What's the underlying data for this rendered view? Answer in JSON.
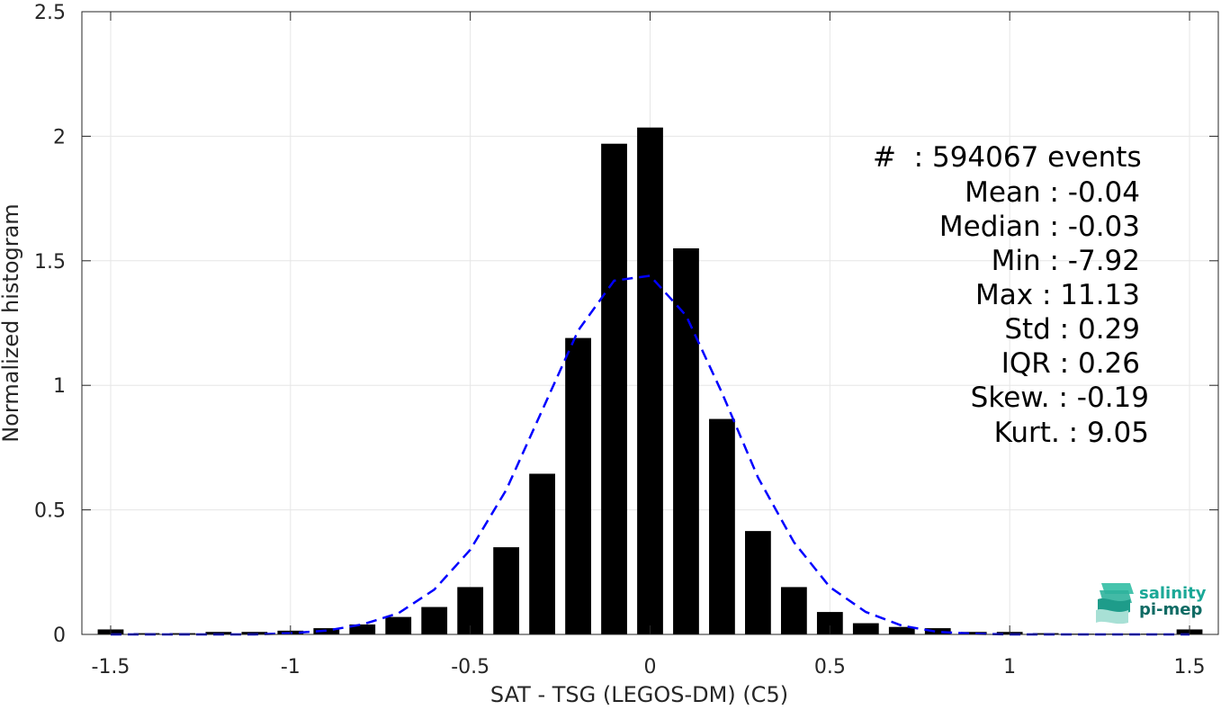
{
  "chart_data": {
    "type": "bar",
    "xlabel": "SAT - TSG (LEGOS-DM) (C5)",
    "ylabel": "Normalized histogram",
    "xlim": [
      -1.58,
      1.58
    ],
    "ylim": [
      0,
      2.5
    ],
    "x_ticks": [
      "-1.5",
      "-1",
      "-0.5",
      "0",
      "0.5",
      "1",
      "1.5"
    ],
    "y_ticks": [
      "0",
      "0.5",
      "1",
      "1.5",
      "2",
      "2.5"
    ],
    "grid": true,
    "bar_color": "#000000",
    "curve_color": "#0000ff",
    "x": [
      -1.5,
      -1.4,
      -1.3,
      -1.2,
      -1.1,
      -1.0,
      -0.9,
      -0.8,
      -0.7,
      -0.6,
      -0.5,
      -0.4,
      -0.3,
      -0.2,
      -0.1,
      0.0,
      0.1,
      0.2,
      0.3,
      0.4,
      0.5,
      0.6,
      0.7,
      0.8,
      0.9,
      1.0,
      1.1,
      1.2,
      1.3,
      1.4,
      1.5
    ],
    "series": [
      {
        "type": "bar",
        "values": [
          0.02,
          0.005,
          0.005,
          0.01,
          0.01,
          0.015,
          0.025,
          0.04,
          0.07,
          0.11,
          0.19,
          0.35,
          0.645,
          1.19,
          1.97,
          2.035,
          1.55,
          0.865,
          0.415,
          0.19,
          0.09,
          0.045,
          0.03,
          0.025,
          0.01,
          0.01,
          0.005,
          0.003,
          0.003,
          0.003,
          0.02
        ]
      },
      {
        "type": "line",
        "style": "dashed",
        "values": [
          0.0,
          0.0,
          0.0,
          0.0,
          0.0,
          0.005,
          0.015,
          0.04,
          0.085,
          0.18,
          0.34,
          0.58,
          0.9,
          1.22,
          1.42,
          1.44,
          1.28,
          0.97,
          0.63,
          0.37,
          0.19,
          0.09,
          0.035,
          0.01,
          0.003,
          0.0,
          0.0,
          0.0,
          0.0,
          0.0,
          0.0
        ]
      }
    ]
  },
  "stats": [
    "#  : 594067 events",
    "Mean : -0.04",
    "Median : -0.03",
    "Min : -7.92",
    "Max : 11.13",
    "Std : 0.29",
    "IQR : 0.26",
    "Skew. : -0.19",
    "Kurt. : 9.05"
  ],
  "logo": {
    "icon": "salinity-pi-mep-logo-icon",
    "line1": "salinity",
    "line2": "pi-mep",
    "color1": "#1aa897",
    "color2": "#0f6b64"
  }
}
